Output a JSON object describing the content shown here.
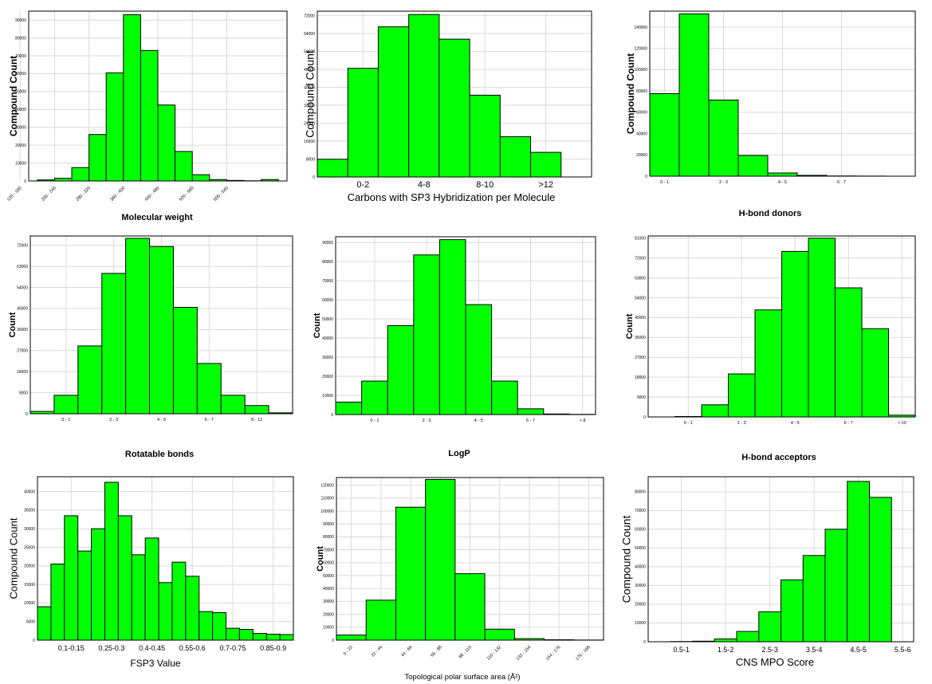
{
  "chart_data": [
    {
      "panel_id": "mw",
      "type": "bar",
      "xlabel": "Molecular weight",
      "ylabel": "Compound Count",
      "x_tick_labels": [
        "120 - 160",
        "200 - 240",
        "280 - 320",
        "360 - 400",
        "440 - 480",
        "520 - 560",
        "600 - 640"
      ],
      "x_tick_positions": [
        0,
        2,
        4,
        6,
        8,
        10,
        12
      ],
      "x_tick_rotated": true,
      "values": [
        0,
        600,
        1500,
        7500,
        26000,
        60500,
        93000,
        73000,
        42500,
        16500,
        3500,
        800,
        300,
        100,
        800,
        0
      ],
      "ylim": [
        0,
        95000
      ],
      "yticks": [
        0,
        10000,
        20000,
        30000,
        40000,
        50000,
        60000,
        70000,
        80000,
        90000
      ],
      "grid": true,
      "bar_color": "#00ff00"
    },
    {
      "panel_id": "sp3",
      "type": "bar",
      "xlabel": "Carbons with SP3 Hybridization per Molecule",
      "ylabel": "Compound Count",
      "x_tick_labels": [
        "0-2",
        "4-8",
        "8-10",
        ">12"
      ],
      "x_tick_positions": [
        1,
        3,
        5,
        7
      ],
      "x_tick_rotated": false,
      "values": [
        7900,
        48500,
        67000,
        72500,
        61500,
        36500,
        18000,
        11000,
        0
      ],
      "ylim": [
        0,
        74000
      ],
      "yticks": [
        0,
        8000,
        16000,
        24000,
        32000,
        40000,
        48000,
        56000,
        64000,
        72000
      ],
      "grid": true,
      "bar_color": "#00ff00"
    },
    {
      "panel_id": "hbd",
      "type": "bar",
      "xlabel": "H-bond donors",
      "ylabel": "Compound Count",
      "x_tick_labels": [
        "0 - 1",
        "2 - 3",
        "4 - 5",
        "6 - 7"
      ],
      "x_tick_positions": [
        1,
        3,
        5,
        7
      ],
      "x_tick_rotated": false,
      "values": [
        77500,
        152500,
        71500,
        19500,
        3000,
        800,
        200,
        100,
        0
      ],
      "ylim": [
        0,
        155000
      ],
      "yticks": [
        0,
        20000,
        40000,
        60000,
        80000,
        100000,
        120000,
        140000
      ],
      "grid": true,
      "bar_color": "#00ff00"
    },
    {
      "panel_id": "rotb",
      "type": "bar",
      "xlabel": "Rotatable bonds",
      "ylabel": "Count",
      "x_tick_labels": [
        "0 - 1",
        "2 - 3",
        "4 - 5",
        "6 - 7",
        "8 - 12"
      ],
      "x_tick_positions": [
        1.5,
        3.5,
        5.5,
        7.5,
        9.5
      ],
      "x_tick_rotated": false,
      "values": [
        1000,
        7900,
        29000,
        60000,
        75000,
        71500,
        45500,
        21500,
        7900,
        3500,
        400
      ],
      "ylim": [
        0,
        76000
      ],
      "yticks": [
        0,
        9000,
        18000,
        27000,
        36000,
        45000,
        54000,
        63000,
        72000
      ],
      "grid": true,
      "bar_color": "#00ff00"
    },
    {
      "panel_id": "logp",
      "type": "bar",
      "xlabel": "LogP",
      "ylabel": "Count",
      "x_tick_labels": [
        "0 - 1",
        "2 - 3",
        "4 - 5",
        "6 - 7",
        "> 8"
      ],
      "x_tick_positions": [
        1.5,
        3.5,
        5.5,
        7.5,
        9.5
      ],
      "x_tick_rotated": false,
      "values": [
        6500,
        17500,
        46500,
        83500,
        91500,
        57500,
        17500,
        3000,
        300,
        100
      ],
      "ylim": [
        0,
        93000
      ],
      "yticks": [
        0,
        10000,
        20000,
        30000,
        40000,
        50000,
        60000,
        70000,
        80000,
        90000
      ],
      "grid": true,
      "bar_color": "#00ff00"
    },
    {
      "panel_id": "hba",
      "type": "bar",
      "xlabel": "H-bond acceptors",
      "ylabel": "Count",
      "x_tick_labels": [
        "0 - 1",
        "2 - 3",
        "4 - 5",
        "6 - 7",
        "> 10"
      ],
      "x_tick_positions": [
        1.5,
        3.5,
        5.5,
        7.5,
        9.5
      ],
      "x_tick_rotated": false,
      "values": [
        0,
        200,
        5500,
        19500,
        48500,
        75000,
        81000,
        58500,
        40000,
        800
      ],
      "ylim": [
        0,
        82000
      ],
      "yticks": [
        0,
        9000,
        18000,
        27000,
        36000,
        45000,
        54000,
        63000,
        72000,
        81000
      ],
      "grid": true,
      "bar_color": "#00ff00"
    },
    {
      "panel_id": "fsp3",
      "type": "bar",
      "xlabel": "FSP3 Value",
      "ylabel": "Compound Count",
      "x_tick_labels": [
        "0.1-0.15",
        "0.25-0.3",
        "0.4-0.45",
        "0.55-0.6",
        "0.7-0.75",
        "0.85-0.9"
      ],
      "x_tick_positions": [
        3,
        6,
        9,
        12,
        15,
        18
      ],
      "x_tick_rotated": false,
      "values": [
        9000,
        20500,
        33500,
        24000,
        30000,
        42500,
        33500,
        23000,
        27500,
        15500,
        21000,
        17200,
        7700,
        7400,
        3200,
        2900,
        1800,
        1600,
        1500
      ],
      "ylim": [
        0,
        44000
      ],
      "yticks": [
        0,
        5000,
        10000,
        15000,
        20000,
        25000,
        30000,
        35000,
        40000
      ],
      "grid": true,
      "bar_color": "#00ff00"
    },
    {
      "panel_id": "tpsa",
      "type": "bar",
      "xlabel": "Topological polar surface area (Å²)",
      "ylabel": "Count",
      "x_tick_labels": [
        "0 - 22",
        "22 - 44",
        "44 - 66",
        "66 - 88",
        "88 - 110",
        "110 - 132",
        "132 - 154",
        "154 - 176",
        "176 - 198"
      ],
      "x_tick_positions": [
        0,
        1,
        2,
        3,
        4,
        5,
        6,
        7,
        8
      ],
      "x_tick_rotated": true,
      "values": [
        4000,
        31000,
        103000,
        124500,
        51500,
        8500,
        1200,
        300,
        100
      ],
      "ylim": [
        0,
        126000
      ],
      "yticks": [
        0,
        10000,
        20000,
        30000,
        40000,
        50000,
        60000,
        70000,
        80000,
        90000,
        100000,
        110000,
        120000
      ],
      "grid": true,
      "bar_color": "#00ff00"
    },
    {
      "panel_id": "cns",
      "type": "bar",
      "xlabel": "CNS MPO Score",
      "ylabel": "Compound Count",
      "x_tick_labels": [
        "0.5-1",
        "1.5-2",
        "2.5-3",
        "3.5-4",
        "4.5-5",
        "5.5-6"
      ],
      "x_tick_positions": [
        1,
        3,
        5,
        7,
        9,
        11
      ],
      "x_tick_rotated": false,
      "values": [
        0,
        100,
        300,
        1500,
        5500,
        16000,
        33000,
        46000,
        60000,
        85500,
        77000,
        0
      ],
      "ylim": [
        0,
        88000
      ],
      "yticks": [
        0,
        10000,
        20000,
        30000,
        40000,
        50000,
        60000,
        70000,
        80000
      ],
      "grid": true,
      "bar_color": "#00ff00"
    }
  ]
}
